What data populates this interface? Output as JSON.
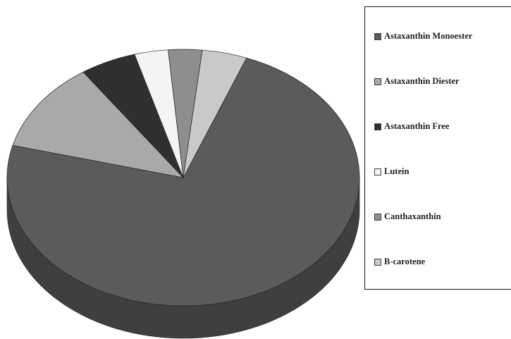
{
  "chart_data": {
    "type": "pie",
    "title": "",
    "legend_position": "right",
    "categories": [
      "Astaxanthin Monoester",
      "Astaxanthin Diester",
      "Astaxanthin Free",
      "Lutein",
      "Canthaxanthin",
      "B-carotene"
    ],
    "values": [
      71,
      11,
      5,
      3,
      3,
      4
    ],
    "colors": [
      "#5b5b5b",
      "#a9a9a9",
      "#2f2f2f",
      "#f4f4f4",
      "#8e8e8e",
      "#c9c9c9"
    ],
    "side_colors": [
      "#3f3f3f",
      "#858585",
      "#1f1f1f",
      "#cfcfcf",
      "#6d6d6d",
      "#a7a7a7"
    ]
  }
}
